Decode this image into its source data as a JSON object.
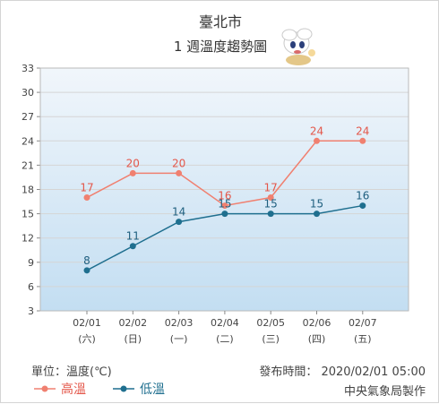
{
  "header": {
    "city": "臺北市",
    "title": "1 週溫度趨勢圖"
  },
  "footer": {
    "unit": "單位：溫度(℃)",
    "issued": "發布時間： 2020/02/01 05:00",
    "maker": "中央氣象局製作"
  },
  "legend": {
    "high": "高溫",
    "low": "低溫"
  },
  "colors": {
    "high": "#f08070",
    "low": "#1f6f8f",
    "plot_top": "#f1f6fb",
    "plot_bottom": "#c3def2",
    "grid": "#d5d5d5"
  },
  "chart_data": {
    "type": "line",
    "title": "1 週溫度趨勢圖",
    "xlabel": "",
    "ylabel": "",
    "categories": [
      "02/01",
      "02/02",
      "02/03",
      "02/04",
      "02/05",
      "02/06",
      "02/07"
    ],
    "weekdays": [
      "(六)",
      "(日)",
      "(一)",
      "(二)",
      "(三)",
      "(四)",
      "(五)"
    ],
    "yticks": [
      3,
      6,
      9,
      12,
      15,
      18,
      21,
      24,
      27,
      30,
      33
    ],
    "ylim": [
      3,
      33
    ],
    "grid": true,
    "legend": "bottom-left",
    "series": [
      {
        "name": "高溫",
        "values": [
          17,
          20,
          20,
          16,
          17,
          24,
          24
        ]
      },
      {
        "name": "低溫",
        "values": [
          8,
          11,
          14,
          15,
          15,
          15,
          16
        ]
      }
    ]
  }
}
